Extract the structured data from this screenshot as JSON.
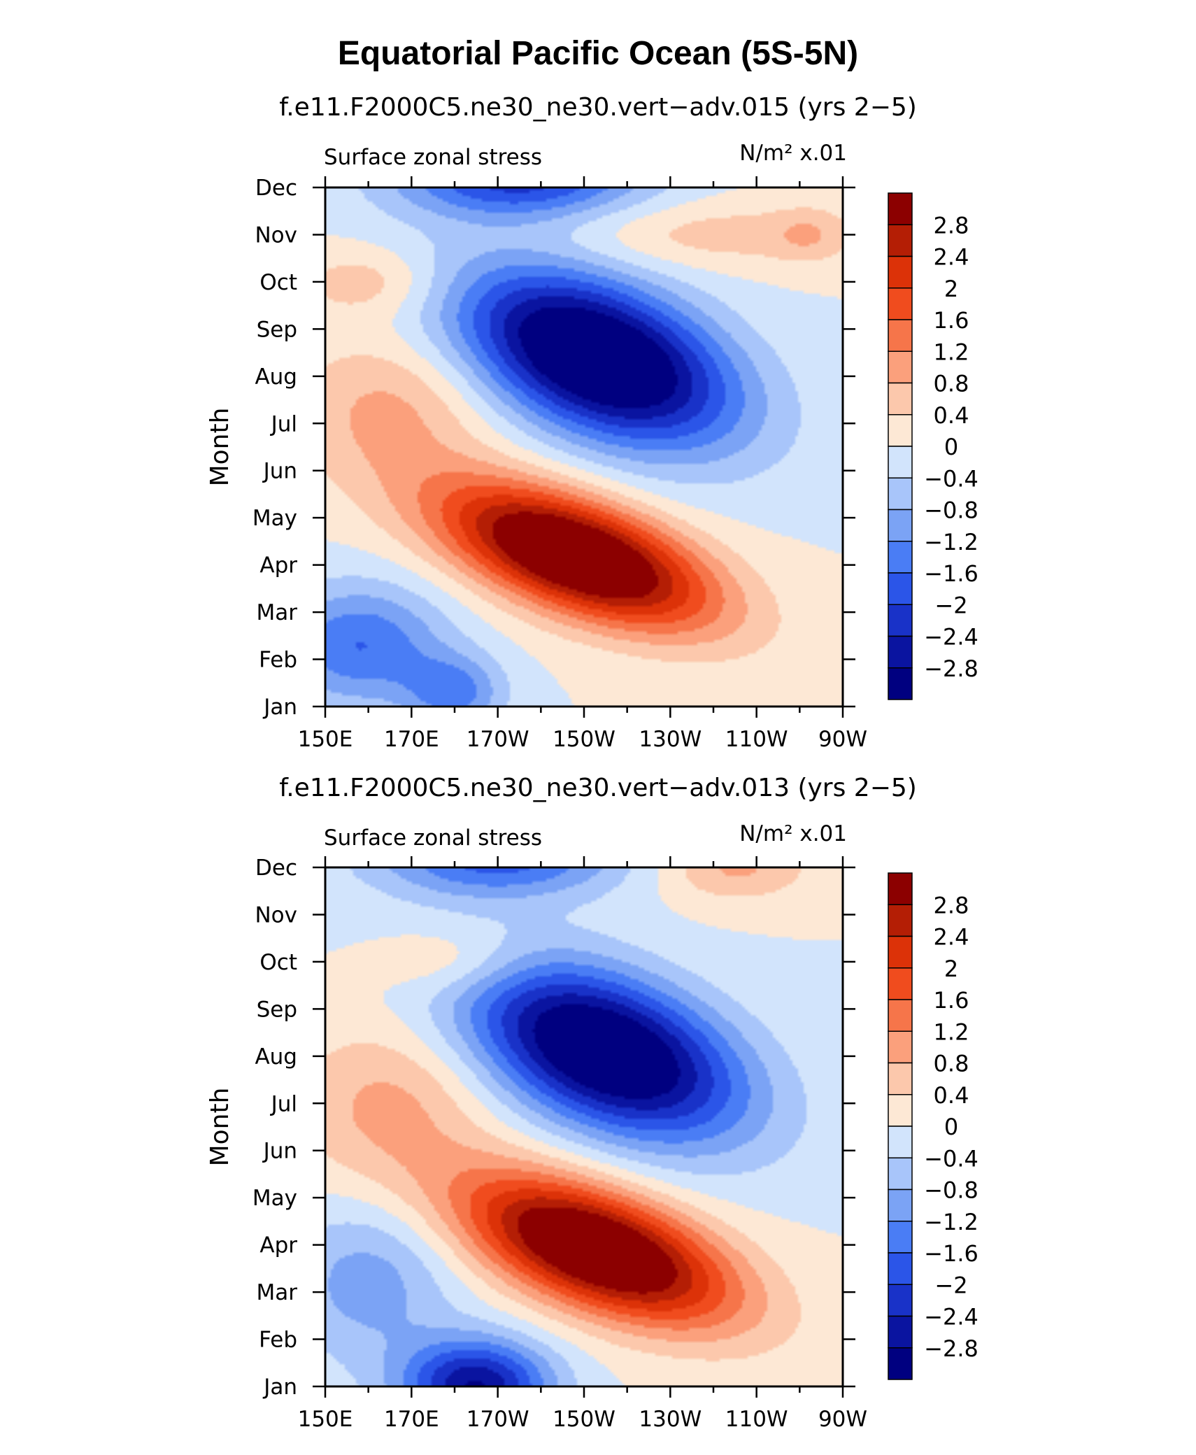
{
  "figure": {
    "title": "Equatorial Pacific Ocean (5S-5N)"
  },
  "palette": [
    "#000080",
    "#0a14a0",
    "#1932c8",
    "#2b55e8",
    "#4a7df5",
    "#7ba3f5",
    "#a8c5fa",
    "#d2e4fc",
    "#fde8d5",
    "#fcc8ac",
    "#fba07c",
    "#f6754a",
    "#f04c1e",
    "#dc3208",
    "#b41e05",
    "#8c0000"
  ],
  "chart_data": [
    {
      "type": "heatmap",
      "title": "f.e11.F2000C5.ne30_ne30.vert−adv.015 (yrs 2−5)",
      "variable_label": "Surface zonal stress",
      "units_label": "N/m² x.01",
      "ylabel": "Month",
      "x_tick_labels": [
        "150E",
        "170E",
        "170W",
        "150W",
        "130W",
        "110W",
        "90W"
      ],
      "x_range_degE": [
        150,
        270
      ],
      "y_tick_labels": [
        "Jan",
        "Feb",
        "Mar",
        "Apr",
        "May",
        "Jun",
        "Jul",
        "Aug",
        "Sep",
        "Oct",
        "Nov",
        "Dec"
      ],
      "colorbar_levels": [
        -2.8,
        -2.4,
        -2,
        -1.6,
        -1.2,
        -0.8,
        -0.4,
        0,
        0.4,
        0.8,
        1.2,
        1.6,
        2,
        2.4,
        2.8
      ],
      "colorbar_labels": [
        "2.8",
        "2.4",
        "2",
        "1.6",
        "1.2",
        "0.8",
        "0.4",
        "0",
        "−0.4",
        "−0.8",
        "−1.2",
        "−1.6",
        "−2",
        "−2.4",
        "−2.8"
      ],
      "features": [
        {
          "lon": 208,
          "month": 4.2,
          "amp": 4.1,
          "slon": 22,
          "smon": 0.85,
          "tilt": -0.028
        },
        {
          "lon": 213,
          "month": 8.4,
          "amp": -4.0,
          "slon": 22,
          "smon": 1.15,
          "tilt": -0.026
        },
        {
          "lon": 158,
          "month": 2.3,
          "amp": -1.6,
          "slon": 14,
          "smon": 0.9,
          "tilt": 0
        },
        {
          "lon": 180,
          "month": 1.3,
          "amp": -1.3,
          "slon": 8,
          "smon": 0.55,
          "tilt": 0
        },
        {
          "lon": 195,
          "month": 12.2,
          "amp": -2.2,
          "slon": 20,
          "smon": 0.6,
          "tilt": 0
        },
        {
          "lon": 165,
          "month": 7.3,
          "amp": 0.9,
          "slon": 16,
          "smon": 1.1,
          "tilt": 0
        },
        {
          "lon": 160,
          "month": 10.0,
          "amp": 0.7,
          "slon": 12,
          "smon": 0.5,
          "tilt": 0
        },
        {
          "lon": 240,
          "month": 11.0,
          "amp": 0.6,
          "slon": 25,
          "smon": 0.5,
          "tilt": 0
        },
        {
          "lon": 262,
          "month": 11.0,
          "amp": 0.5,
          "slon": 6,
          "smon": 0.4,
          "tilt": 0
        }
      ]
    },
    {
      "type": "heatmap",
      "title": "f.e11.F2000C5.ne30_ne30.vert−adv.013 (yrs 2−5)",
      "variable_label": "Surface zonal stress",
      "units_label": "N/m² x.01",
      "ylabel": "Month",
      "x_tick_labels": [
        "150E",
        "170E",
        "170W",
        "150W",
        "130W",
        "110W",
        "90W"
      ],
      "x_range_degE": [
        150,
        270
      ],
      "y_tick_labels": [
        "Jan",
        "Feb",
        "Mar",
        "Apr",
        "May",
        "Jun",
        "Jul",
        "Aug",
        "Sep",
        "Oct",
        "Nov",
        "Dec"
      ],
      "colorbar_levels": [
        -2.8,
        -2.4,
        -2,
        -1.6,
        -1.2,
        -0.8,
        -0.4,
        0,
        0.4,
        0.8,
        1.2,
        1.6,
        2,
        2.4,
        2.8
      ],
      "colorbar_labels": [
        "2.8",
        "2.4",
        "2",
        "1.6",
        "1.2",
        "0.8",
        "0.4",
        "0",
        "−0.4",
        "−0.8",
        "−1.2",
        "−1.6",
        "−2",
        "−2.4",
        "−2.8"
      ],
      "features": [
        {
          "lon": 213,
          "month": 3.9,
          "amp": 4.0,
          "slon": 22,
          "smon": 0.9,
          "tilt": -0.028
        },
        {
          "lon": 215,
          "month": 8.1,
          "amp": -3.8,
          "slon": 22,
          "smon": 1.15,
          "tilt": -0.026
        },
        {
          "lon": 185,
          "month": 1.0,
          "amp": -2.8,
          "slon": 12,
          "smon": 0.7,
          "tilt": 0
        },
        {
          "lon": 160,
          "month": 3.2,
          "amp": -1.0,
          "slon": 14,
          "smon": 1.2,
          "tilt": 0
        },
        {
          "lon": 190,
          "month": 12.2,
          "amp": -1.8,
          "slon": 20,
          "smon": 0.6,
          "tilt": 0
        },
        {
          "lon": 165,
          "month": 7.0,
          "amp": 0.9,
          "slon": 16,
          "smon": 1.2,
          "tilt": 0
        },
        {
          "lon": 180,
          "month": 10.0,
          "amp": 0.7,
          "slon": 12,
          "smon": 0.5,
          "tilt": 0
        },
        {
          "lon": 245,
          "month": 12.0,
          "amp": 0.9,
          "slon": 12,
          "smon": 0.5,
          "tilt": 0
        }
      ]
    }
  ]
}
